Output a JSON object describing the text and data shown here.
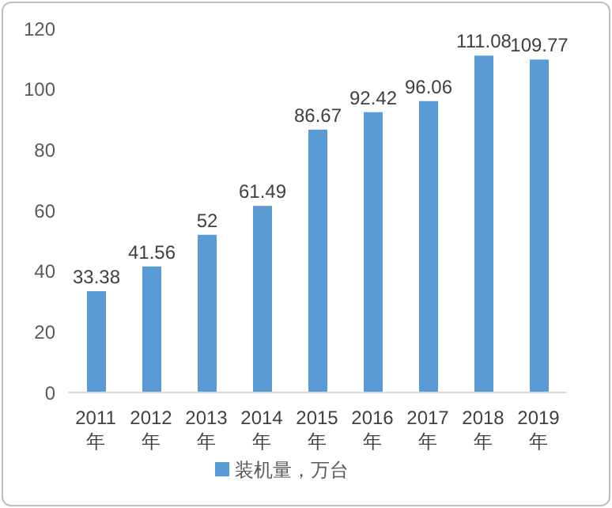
{
  "chart_data": {
    "type": "bar",
    "categories": [
      "2011年",
      "2012年",
      "2013年",
      "2014年",
      "2015年",
      "2016年",
      "2017年",
      "2018年",
      "2019年"
    ],
    "series": [
      {
        "name": "装机量，万台",
        "color": "#5b9bd5",
        "values": [
          33.38,
          41.56,
          52,
          61.49,
          86.67,
          92.42,
          96.06,
          111.08,
          109.77
        ]
      }
    ],
    "ylim": [
      0,
      120
    ],
    "yticks": [
      0,
      20,
      40,
      60,
      80,
      100,
      120
    ],
    "grid": false,
    "legend": "bottom",
    "data_labels": true
  }
}
